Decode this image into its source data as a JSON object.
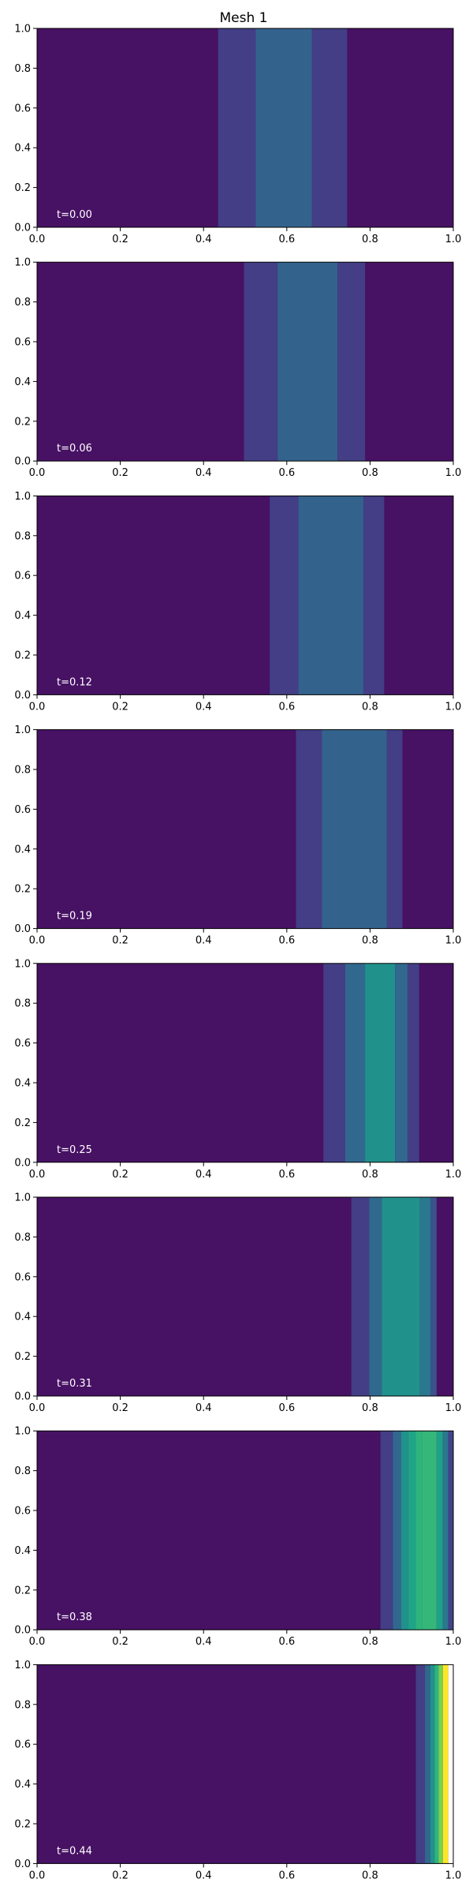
{
  "title": "Mesh 1",
  "chart_data": {
    "type": "heatmap",
    "title": "Mesh 1",
    "xlim": [
      0,
      1
    ],
    "ylim": [
      0,
      1
    ],
    "xticks": [
      "0.0",
      "0.2",
      "0.4",
      "0.6",
      "0.8",
      "1.0"
    ],
    "yticks": [
      "0.0",
      "0.2",
      "0.4",
      "0.6",
      "0.8",
      "1.0"
    ],
    "colormap": "viridis",
    "background_color": "#471164",
    "panels": [
      {
        "label": "t=0.00",
        "bands": [
          {
            "x0": 0.435,
            "x1": 0.525,
            "color": "#433e85"
          },
          {
            "x0": 0.525,
            "x1": 0.66,
            "color": "#33638d"
          },
          {
            "x0": 0.66,
            "x1": 0.745,
            "color": "#433e85"
          }
        ]
      },
      {
        "label": "t=0.06",
        "bands": [
          {
            "x0": 0.497,
            "x1": 0.578,
            "color": "#433e85"
          },
          {
            "x0": 0.578,
            "x1": 0.722,
            "color": "#33638d"
          },
          {
            "x0": 0.722,
            "x1": 0.788,
            "color": "#433e85"
          }
        ]
      },
      {
        "label": "t=0.12",
        "bands": [
          {
            "x0": 0.559,
            "x1": 0.628,
            "color": "#433e85"
          },
          {
            "x0": 0.628,
            "x1": 0.784,
            "color": "#33638d"
          },
          {
            "x0": 0.784,
            "x1": 0.834,
            "color": "#433e85"
          }
        ]
      },
      {
        "label": "t=0.19",
        "bands": [
          {
            "x0": 0.622,
            "x1": 0.684,
            "color": "#433e85"
          },
          {
            "x0": 0.684,
            "x1": 0.84,
            "color": "#33638d"
          },
          {
            "x0": 0.84,
            "x1": 0.878,
            "color": "#433e85"
          }
        ]
      },
      {
        "label": "t=0.25",
        "bands": [
          {
            "x0": 0.688,
            "x1": 0.74,
            "color": "#433e85"
          },
          {
            "x0": 0.74,
            "x1": 0.788,
            "color": "#31688e"
          },
          {
            "x0": 0.788,
            "x1": 0.86,
            "color": "#21918c"
          },
          {
            "x0": 0.86,
            "x1": 0.89,
            "color": "#31688e"
          },
          {
            "x0": 0.89,
            "x1": 0.918,
            "color": "#433e85"
          }
        ]
      },
      {
        "label": "t=0.31",
        "bands": [
          {
            "x0": 0.755,
            "x1": 0.798,
            "color": "#433e85"
          },
          {
            "x0": 0.798,
            "x1": 0.828,
            "color": "#31688e"
          },
          {
            "x0": 0.828,
            "x1": 0.92,
            "color": "#21918c"
          },
          {
            "x0": 0.92,
            "x1": 0.945,
            "color": "#2a788e"
          },
          {
            "x0": 0.945,
            "x1": 0.96,
            "color": "#3b528b"
          }
        ]
      },
      {
        "label": "t=0.38",
        "bands": [
          {
            "x0": 0.825,
            "x1": 0.855,
            "color": "#433e85"
          },
          {
            "x0": 0.855,
            "x1": 0.875,
            "color": "#31688e"
          },
          {
            "x0": 0.875,
            "x1": 0.893,
            "color": "#21918c"
          },
          {
            "x0": 0.893,
            "x1": 0.91,
            "color": "#20a486"
          },
          {
            "x0": 0.91,
            "x1": 0.925,
            "color": "#2fb47c"
          },
          {
            "x0": 0.925,
            "x1": 0.96,
            "color": "#35b779"
          },
          {
            "x0": 0.96,
            "x1": 0.975,
            "color": "#1fa188"
          },
          {
            "x0": 0.975,
            "x1": 0.988,
            "color": "#2a788e"
          },
          {
            "x0": 0.988,
            "x1": 1.0,
            "color": "#414487"
          }
        ]
      },
      {
        "label": "t=0.44",
        "bands": [
          {
            "x0": 0.91,
            "x1": 0.932,
            "color": "#433e85"
          },
          {
            "x0": 0.932,
            "x1": 0.945,
            "color": "#31688e"
          },
          {
            "x0": 0.945,
            "x1": 0.955,
            "color": "#21918c"
          },
          {
            "x0": 0.955,
            "x1": 0.965,
            "color": "#2fb47c"
          },
          {
            "x0": 0.965,
            "x1": 0.975,
            "color": "#7ad151"
          },
          {
            "x0": 0.975,
            "x1": 0.988,
            "color": "#fde725"
          },
          {
            "x0": 0.988,
            "x1": 1.0,
            "color": "#ffffff"
          }
        ]
      }
    ]
  }
}
